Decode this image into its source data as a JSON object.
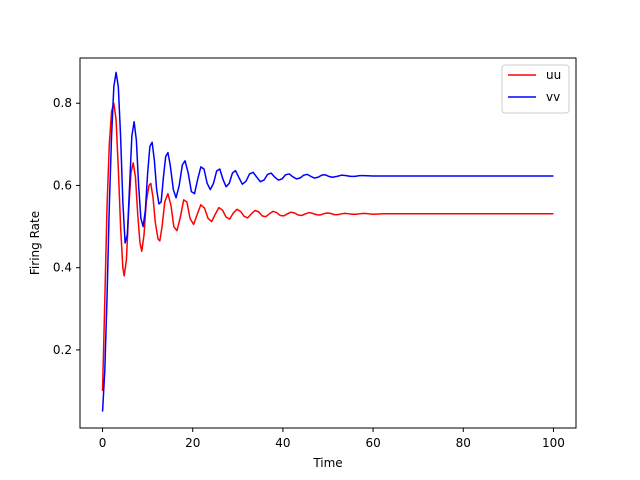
{
  "chart_data": {
    "type": "line",
    "title": "",
    "xlabel": "Time",
    "ylabel": "Firing Rate",
    "xlim": [
      -5,
      105
    ],
    "ylim": [
      0.01,
      0.91
    ],
    "xticks": [
      0,
      20,
      40,
      60,
      80,
      100
    ],
    "yticks": [
      0.2,
      0.4,
      0.6,
      0.8
    ],
    "grid": false,
    "legend": {
      "position": "top-right"
    },
    "series": [
      {
        "name": "uu",
        "color": "#ff0000",
        "points": [
          [
            0,
            0.1
          ],
          [
            0.5,
            0.32
          ],
          [
            1,
            0.55
          ],
          [
            1.5,
            0.7
          ],
          [
            2,
            0.78
          ],
          [
            2.5,
            0.8
          ],
          [
            3,
            0.76
          ],
          [
            3.5,
            0.64
          ],
          [
            4,
            0.5
          ],
          [
            4.5,
            0.4
          ],
          [
            4.8,
            0.38
          ],
          [
            5.3,
            0.42
          ],
          [
            5.8,
            0.54
          ],
          [
            6.3,
            0.63
          ],
          [
            6.8,
            0.655
          ],
          [
            7.3,
            0.62
          ],
          [
            7.8,
            0.53
          ],
          [
            8.3,
            0.46
          ],
          [
            8.7,
            0.44
          ],
          [
            9.2,
            0.48
          ],
          [
            9.7,
            0.56
          ],
          [
            10.3,
            0.6
          ],
          [
            10.7,
            0.605
          ],
          [
            11.2,
            0.57
          ],
          [
            11.7,
            0.51
          ],
          [
            12.3,
            0.47
          ],
          [
            12.7,
            0.465
          ],
          [
            13.2,
            0.5
          ],
          [
            13.8,
            0.56
          ],
          [
            14.5,
            0.58
          ],
          [
            15.2,
            0.55
          ],
          [
            15.8,
            0.5
          ],
          [
            16.5,
            0.49
          ],
          [
            17.2,
            0.52
          ],
          [
            18,
            0.565
          ],
          [
            18.7,
            0.56
          ],
          [
            19.4,
            0.52
          ],
          [
            20.2,
            0.505
          ],
          [
            21,
            0.53
          ],
          [
            21.8,
            0.553
          ],
          [
            22.6,
            0.545
          ],
          [
            23.4,
            0.52
          ],
          [
            24.2,
            0.512
          ],
          [
            25,
            0.53
          ],
          [
            25.8,
            0.546
          ],
          [
            26.6,
            0.54
          ],
          [
            27.4,
            0.523
          ],
          [
            28.2,
            0.518
          ],
          [
            29,
            0.533
          ],
          [
            29.8,
            0.542
          ],
          [
            30.6,
            0.537
          ],
          [
            31.4,
            0.525
          ],
          [
            32.2,
            0.521
          ],
          [
            33,
            0.531
          ],
          [
            33.8,
            0.539
          ],
          [
            34.6,
            0.536
          ],
          [
            35.4,
            0.526
          ],
          [
            36.2,
            0.524
          ],
          [
            37,
            0.531
          ],
          [
            37.8,
            0.537
          ],
          [
            38.6,
            0.534
          ],
          [
            39.4,
            0.527
          ],
          [
            40.2,
            0.526
          ],
          [
            41,
            0.531
          ],
          [
            41.8,
            0.535
          ],
          [
            42.6,
            0.533
          ],
          [
            43.4,
            0.528
          ],
          [
            44.2,
            0.527
          ],
          [
            45,
            0.531
          ],
          [
            45.8,
            0.534
          ],
          [
            46.6,
            0.532
          ],
          [
            47.4,
            0.529
          ],
          [
            48.2,
            0.528
          ],
          [
            49,
            0.531
          ],
          [
            49.8,
            0.533
          ],
          [
            50.6,
            0.532
          ],
          [
            51.4,
            0.529
          ],
          [
            52.2,
            0.529
          ],
          [
            53,
            0.531
          ],
          [
            53.8,
            0.532
          ],
          [
            54.6,
            0.531
          ],
          [
            55.4,
            0.53
          ],
          [
            56.2,
            0.53
          ],
          [
            57,
            0.531
          ],
          [
            58,
            0.532
          ],
          [
            59,
            0.531
          ],
          [
            60,
            0.53
          ],
          [
            62,
            0.531
          ],
          [
            65,
            0.531
          ],
          [
            70,
            0.531
          ],
          [
            80,
            0.531
          ],
          [
            90,
            0.531
          ],
          [
            100,
            0.531
          ]
        ]
      },
      {
        "name": "vv",
        "color": "#0000ff",
        "points": [
          [
            0,
            0.05
          ],
          [
            0.5,
            0.15
          ],
          [
            1,
            0.33
          ],
          [
            1.5,
            0.55
          ],
          [
            2,
            0.72
          ],
          [
            2.5,
            0.84
          ],
          [
            3,
            0.875
          ],
          [
            3.5,
            0.84
          ],
          [
            4,
            0.72
          ],
          [
            4.5,
            0.56
          ],
          [
            5,
            0.46
          ],
          [
            5.5,
            0.48
          ],
          [
            6,
            0.6
          ],
          [
            6.5,
            0.72
          ],
          [
            7,
            0.755
          ],
          [
            7.5,
            0.71
          ],
          [
            8,
            0.6
          ],
          [
            8.5,
            0.52
          ],
          [
            9,
            0.5
          ],
          [
            9.5,
            0.54
          ],
          [
            10,
            0.63
          ],
          [
            10.5,
            0.695
          ],
          [
            11,
            0.705
          ],
          [
            11.5,
            0.66
          ],
          [
            12,
            0.59
          ],
          [
            12.5,
            0.555
          ],
          [
            13,
            0.56
          ],
          [
            13.5,
            0.62
          ],
          [
            14,
            0.67
          ],
          [
            14.5,
            0.68
          ],
          [
            15,
            0.65
          ],
          [
            15.7,
            0.59
          ],
          [
            16.3,
            0.57
          ],
          [
            17,
            0.6
          ],
          [
            17.7,
            0.65
          ],
          [
            18.3,
            0.66
          ],
          [
            19,
            0.63
          ],
          [
            19.7,
            0.585
          ],
          [
            20.4,
            0.58
          ],
          [
            21.1,
            0.615
          ],
          [
            21.8,
            0.645
          ],
          [
            22.5,
            0.64
          ],
          [
            23.2,
            0.605
          ],
          [
            23.9,
            0.59
          ],
          [
            24.6,
            0.605
          ],
          [
            25.3,
            0.635
          ],
          [
            26,
            0.64
          ],
          [
            26.7,
            0.615
          ],
          [
            27.4,
            0.597
          ],
          [
            28.1,
            0.605
          ],
          [
            28.8,
            0.63
          ],
          [
            29.5,
            0.636
          ],
          [
            30.2,
            0.62
          ],
          [
            31,
            0.603
          ],
          [
            31.8,
            0.61
          ],
          [
            32.6,
            0.628
          ],
          [
            33.4,
            0.632
          ],
          [
            34.2,
            0.62
          ],
          [
            35,
            0.609
          ],
          [
            35.8,
            0.613
          ],
          [
            36.6,
            0.627
          ],
          [
            37.4,
            0.63
          ],
          [
            38.2,
            0.62
          ],
          [
            39,
            0.613
          ],
          [
            39.8,
            0.616
          ],
          [
            40.6,
            0.626
          ],
          [
            41.4,
            0.628
          ],
          [
            42.2,
            0.621
          ],
          [
            43,
            0.616
          ],
          [
            43.8,
            0.618
          ],
          [
            44.6,
            0.625
          ],
          [
            45.4,
            0.627
          ],
          [
            46.2,
            0.622
          ],
          [
            47,
            0.618
          ],
          [
            47.8,
            0.62
          ],
          [
            48.6,
            0.625
          ],
          [
            49.4,
            0.626
          ],
          [
            50.2,
            0.622
          ],
          [
            51,
            0.62
          ],
          [
            52,
            0.622
          ],
          [
            53,
            0.625
          ],
          [
            54,
            0.624
          ],
          [
            55,
            0.622
          ],
          [
            56,
            0.622
          ],
          [
            57,
            0.624
          ],
          [
            58,
            0.624
          ],
          [
            60,
            0.623
          ],
          [
            62,
            0.623
          ],
          [
            65,
            0.623
          ],
          [
            70,
            0.623
          ],
          [
            80,
            0.623
          ],
          [
            90,
            0.623
          ],
          [
            100,
            0.623
          ]
        ]
      }
    ]
  }
}
